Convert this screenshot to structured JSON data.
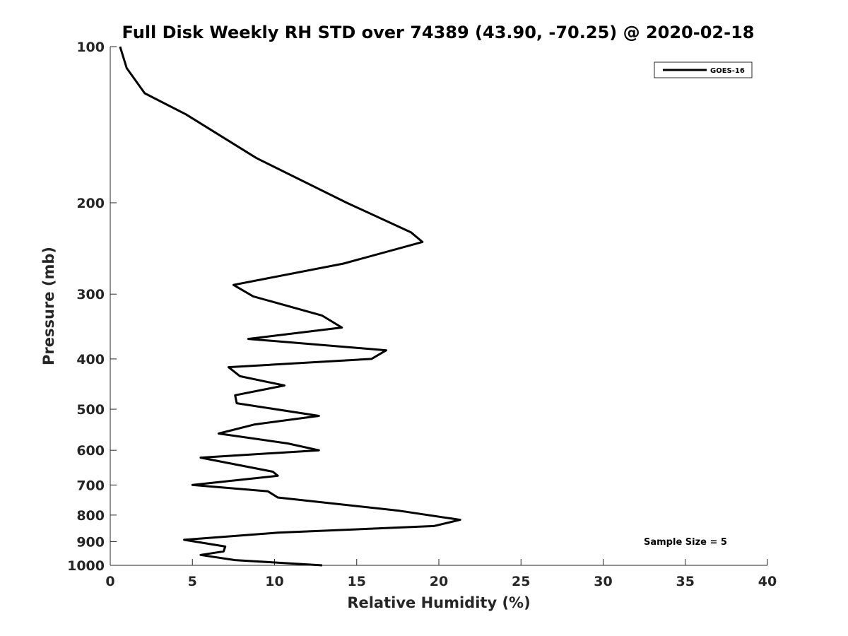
{
  "chart_data": {
    "type": "line",
    "title": "Full Disk Weekly RH STD over 74389 (43.90, -70.25) @ 2020-02-18",
    "xlabel": "Relative Humidity (%)",
    "ylabel": "Pressure (mb)",
    "xlim": [
      0,
      40
    ],
    "ylim": [
      100,
      1000
    ],
    "y_scale": "log",
    "y_reversed": true,
    "x_ticks": [
      "0",
      "5",
      "10",
      "15",
      "20",
      "25",
      "30",
      "35",
      "40"
    ],
    "y_ticks": [
      "100",
      "200",
      "300",
      "400",
      "500",
      "600",
      "700",
      "800",
      "900",
      "1000"
    ],
    "grid": false,
    "legend_position": "top-right",
    "annotation": "Sample Size = 5",
    "series": [
      {
        "name": "GOES-16",
        "color": "#000000",
        "x": [
          0.6,
          1.0,
          2.1,
          4.6,
          8.9,
          14.4,
          18.3,
          19.0,
          14.2,
          7.5,
          8.7,
          12.9,
          14.1,
          8.4,
          16.8,
          15.9,
          7.2,
          7.9,
          10.6,
          7.6,
          7.7,
          12.7,
          8.8,
          6.6,
          10.8,
          12.7,
          5.5,
          9.9,
          10.2,
          5.0,
          9.6,
          10.2,
          17.6,
          21.3,
          19.7,
          10.2,
          4.5,
          7.0,
          6.9,
          5.5,
          7.6,
          12.9
        ],
        "y": [
          100,
          110,
          123,
          135,
          164,
          200,
          228,
          238,
          262,
          288,
          303,
          330,
          348,
          366,
          385,
          400,
          415,
          432,
          450,
          470,
          487,
          515,
          535,
          557,
          582,
          600,
          620,
          660,
          672,
          700,
          720,
          740,
          785,
          817,
          840,
          865,
          893,
          920,
          940,
          955,
          977,
          1000
        ]
      }
    ]
  }
}
